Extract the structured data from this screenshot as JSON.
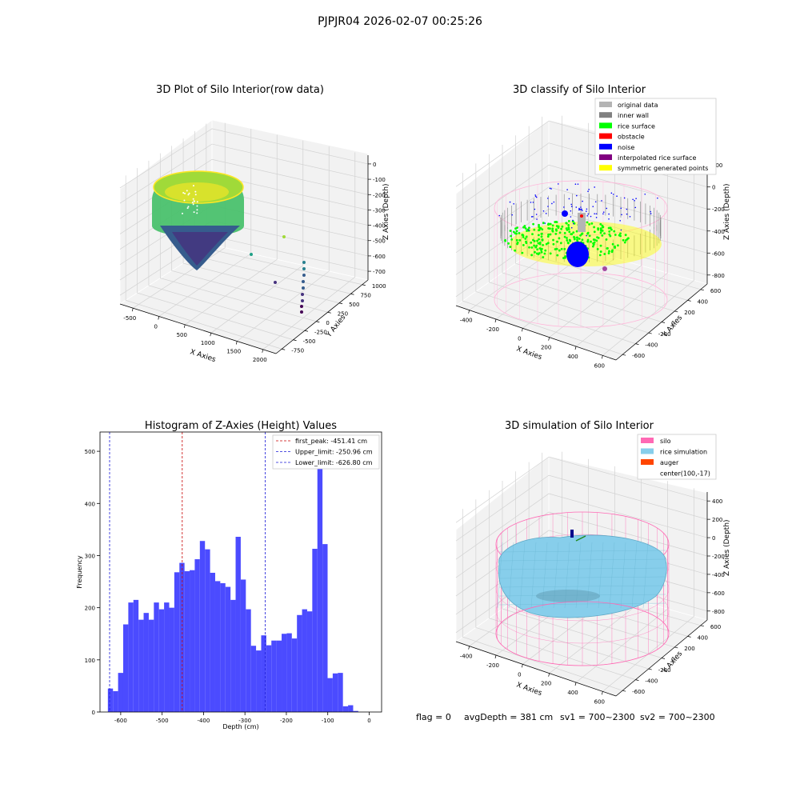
{
  "figure": {
    "suptitle": "PJPJR04 2026-02-07 00:25:26",
    "footer": {
      "flag": "flag = 0",
      "avg_depth": "avgDepth = 381 cm",
      "sv1": "sv1 = 700~2300",
      "sv2": "sv2 = 700~2300"
    }
  },
  "colors": {
    "histogram": "#4b4bff",
    "first_peak": "#c80000",
    "limits": "#1a1ad8",
    "original": "#b4b4b4",
    "inner_wall": "#808080",
    "rice_surface": "#00ff00",
    "obstacle": "#ff0000",
    "noise": "#0000ff",
    "interpolated": "#800080",
    "symmetric": "#ffff00",
    "silo": "#ff69b4",
    "rice_sim": "#87ceeb",
    "auger": "#ff4500"
  },
  "chart_data": [
    {
      "type": "scatter",
      "title": "3D Plot of Silo Interior(row data)",
      "xlabel": "X Axies",
      "ylabel": "Y Axies",
      "zlabel": "Z Axies (Depth)",
      "x_ticks": [
        "-500",
        "0",
        "500",
        "1000",
        "1500",
        "2000"
      ],
      "y_ticks": [
        "-750",
        "-500",
        "-250",
        "0",
        "250",
        "500",
        "750",
        "1000"
      ],
      "z_ticks": [
        "0",
        "-100",
        "-200",
        "-300",
        "-400",
        "-500",
        "-600",
        "-700"
      ],
      "colormap": "viridis"
    },
    {
      "type": "scatter",
      "title": "3D classify of Silo Interior",
      "xlabel": "X Axies",
      "ylabel": "Y Axies",
      "zlabel": "Z Axies (Depth)",
      "x_ticks": [
        "-400",
        "-200",
        "0",
        "200",
        "400",
        "600"
      ],
      "y_ticks": [
        "-600",
        "-400",
        "-200",
        "0",
        "200",
        "400",
        "600"
      ],
      "z_ticks": [
        "200",
        "0",
        "-200",
        "-400",
        "-600",
        "-800"
      ],
      "z_top_tick_partial": "0",
      "legend_position": "upper right",
      "legend": [
        {
          "label": "original data",
          "color": "#b4b4b4"
        },
        {
          "label": "inner wall",
          "color": "#808080"
        },
        {
          "label": "rice surface",
          "color": "#00ff00"
        },
        {
          "label": "obstacle",
          "color": "#ff0000"
        },
        {
          "label": "noise",
          "color": "#0000ff"
        },
        {
          "label": "interpolated rice surface",
          "color": "#800080"
        },
        {
          "label": "symmetric generated points",
          "color": "#ffff00"
        }
      ]
    },
    {
      "type": "bar",
      "title": "Histogram of Z-Axies (Height) Values",
      "xlabel": "Depth (cm)",
      "ylabel": "Frequency",
      "xlim": [
        -650,
        30
      ],
      "ylim": [
        0,
        537
      ],
      "x_ticks": [
        -600,
        -500,
        -400,
        -300,
        -200,
        -100,
        0
      ],
      "y_ticks": [
        0,
        100,
        200,
        300,
        400,
        500
      ],
      "bin_start": -631,
      "bin_width": 12.34,
      "values": [
        45,
        40,
        75,
        168,
        210,
        215,
        177,
        190,
        177,
        210,
        197,
        210,
        200,
        268,
        286,
        270,
        272,
        293,
        328,
        312,
        267,
        251,
        247,
        240,
        215,
        336,
        254,
        197,
        127,
        118,
        147,
        128,
        137,
        137,
        150,
        151,
        141,
        186,
        197,
        193,
        313,
        512,
        322,
        65,
        74,
        75,
        11,
        13,
        2
      ],
      "legend_position": "upper right",
      "lines": [
        {
          "name": "first_peak",
          "label": "first_peak: -451.41 cm",
          "x": -451.41,
          "color": "#c80000"
        },
        {
          "name": "Upper_limit",
          "label": "Upper_limit: -250.96 cm",
          "x": -250.96,
          "color": "#1a1ad8"
        },
        {
          "name": "Lower_limit",
          "label": "Lower_limit: -626.80 cm",
          "x": -626.8,
          "color": "#1a1ad8"
        }
      ]
    },
    {
      "type": "area",
      "title": "3D simulation of Silo Interior",
      "xlabel": "X Axies",
      "ylabel": "Y Axies",
      "zlabel": "Z Axies (Depth)",
      "x_ticks": [
        "-400",
        "-200",
        "0",
        "200",
        "400",
        "600"
      ],
      "y_ticks": [
        "-600",
        "-400",
        "-200",
        "0",
        "200",
        "400",
        "600"
      ],
      "z_ticks": [
        "400",
        "200",
        "0",
        "-200",
        "-400",
        "-600",
        "-800"
      ],
      "legend_position": "upper right",
      "legend": [
        {
          "label": "silo",
          "color": "#ff69b4"
        },
        {
          "label": "rice simulation",
          "color": "#87ceeb"
        },
        {
          "label": "auger",
          "color": "#ff4500"
        },
        {
          "label": "center(100,-17)",
          "color": ""
        }
      ]
    }
  ]
}
